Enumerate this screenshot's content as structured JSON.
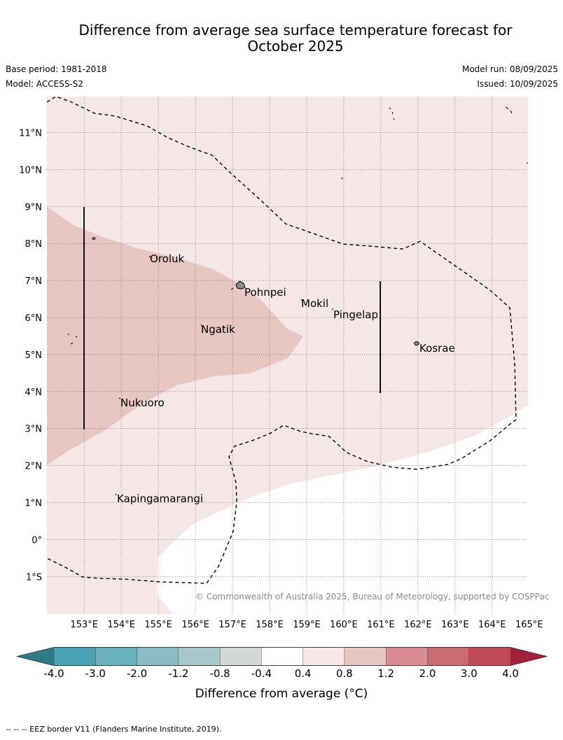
{
  "header": {
    "title_line1": "Difference from average sea surface temperature forecast for",
    "title_line2": "October 2025",
    "base_period": "Base period: 1981-2018",
    "model": "Model: ACCESS-S2",
    "model_run": "Model run: 08/09/2025",
    "issued": "Issued: 10/09/2025"
  },
  "map": {
    "lat_labels": [
      "11°N",
      "10°N",
      "9°N",
      "8°N",
      "7°N",
      "6°N",
      "5°N",
      "4°N",
      "3°N",
      "2°N",
      "1°N",
      "0°",
      "1°S"
    ],
    "lon_labels": [
      "153°E",
      "154°E",
      "155°E",
      "156°E",
      "157°E",
      "158°E",
      "159°E",
      "160°E",
      "161°E",
      "162°E",
      "163°E",
      "164°E",
      "165°E"
    ],
    "places": [
      {
        "name": "Oroluk"
      },
      {
        "name": "Pohnpei"
      },
      {
        "name": "Mokil"
      },
      {
        "name": "Pingelap"
      },
      {
        "name": "Ngatik"
      },
      {
        "name": "Kosrae"
      },
      {
        "name": "Nukuoro"
      },
      {
        "name": "Kapingamarangi"
      }
    ],
    "copyright": "© Commonwealth of Australia 2025, Bureau of Meteorology, supported by COSPPac",
    "colors": {
      "band_0_4_to_0_8": "#f5e7e5",
      "band_0_8_to_1_2": "#e8c6c1",
      "below_0_4": "#ffffff",
      "eez_line": "#000000"
    }
  },
  "colorbar": {
    "tick_labels": [
      "-4.0",
      "-3.0",
      "-2.0",
      "-1.2",
      "-0.8",
      "-0.4",
      "0.4",
      "0.8",
      "1.2",
      "2.0",
      "3.0",
      "4.0"
    ],
    "colors": [
      "#2f7c88",
      "#4aa3b3",
      "#6bb0bf",
      "#8cbac5",
      "#a8c7cb",
      "#d3d8d7",
      "#ffffff",
      "#f5e7e5",
      "#e8c6c1",
      "#d98c94",
      "#cc6b74",
      "#c04a58",
      "#a3203a"
    ],
    "title": "Difference from average (°C)"
  },
  "footer": {
    "eez_note": "--  --  -- EEZ border V11 (Flanders Marine Institute, 2019)."
  }
}
